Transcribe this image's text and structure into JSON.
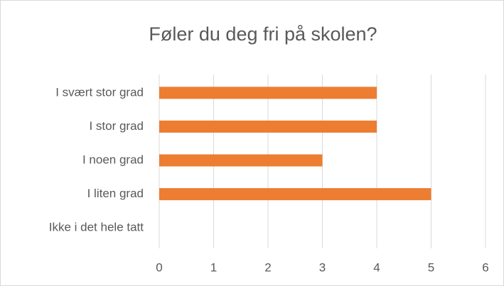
{
  "chart_data": {
    "type": "bar",
    "orientation": "horizontal",
    "title": "Føler du deg fri på skolen?",
    "categories": [
      "I svært stor grad",
      "I stor grad",
      "I noen grad",
      "I liten grad",
      "Ikke i det hele tatt"
    ],
    "values": [
      4,
      4,
      3,
      5,
      0
    ],
    "color": "#ed7d31",
    "xlim": [
      0,
      6
    ],
    "xticks": [
      0,
      1,
      2,
      3,
      4,
      5,
      6
    ],
    "grid": true
  }
}
